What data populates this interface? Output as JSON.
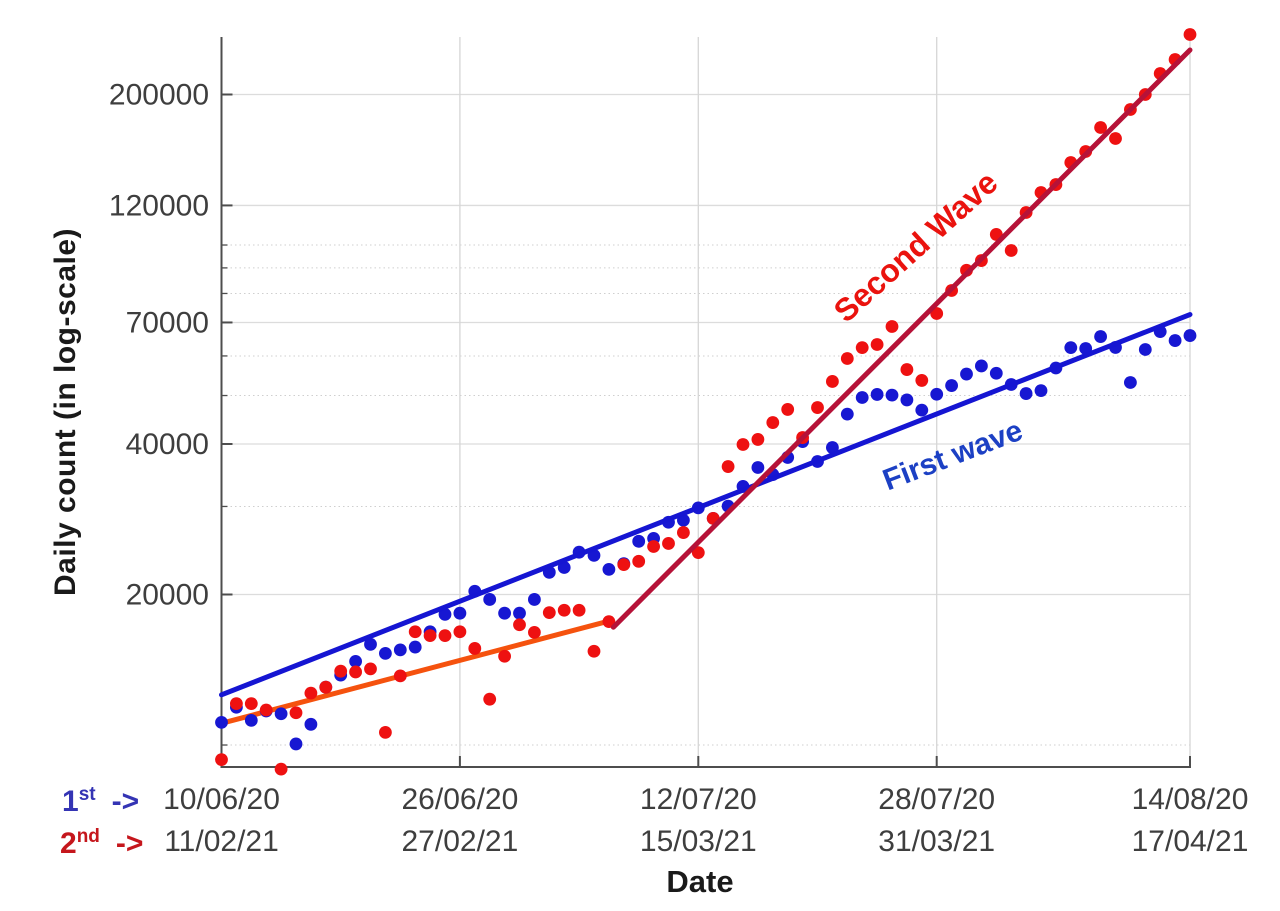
{
  "figure": {
    "y_axis_label": "Daily count (in log-scale)",
    "x_axis_label": "Date",
    "legend": {
      "row1": {
        "num": "1",
        "sup": "st",
        "arrow": "->",
        "color": "#3434b4"
      },
      "row2": {
        "num": "2",
        "sup": "nd",
        "arrow": "->",
        "color": "#c5161c"
      }
    },
    "annotations": {
      "second_wave": {
        "text": "Second Wave",
        "color": "#ea130e"
      },
      "first_wave": {
        "text": "First wave",
        "color": "#1c40c4"
      }
    }
  },
  "chart_data": {
    "type": "scatter",
    "title": "",
    "xlabel": "Date",
    "ylabel": "Daily count (in log-scale)",
    "y_scale": "log",
    "ylim": [
      9000,
      261000
    ],
    "x_unit": "days since wave start (daily points, day 0 - day 65)",
    "grid": "major solid + minor dotted horizontal, vertical at major date ticks",
    "y_major_ticks": [
      20000,
      40000,
      70000,
      120000,
      200000
    ],
    "y_minor_ticks": [
      10000,
      30000,
      50000,
      60000,
      80000,
      90000,
      100000
    ],
    "x_ticks": {
      "days": [
        0,
        16,
        32,
        48,
        65
      ],
      "first_wave_labels": [
        "10/06/20",
        "26/06/20",
        "12/07/20",
        "28/07/20",
        "14/08/20"
      ],
      "second_wave_labels": [
        "11/02/21",
        "27/02/21",
        "15/03/21",
        "31/03/21",
        "17/04/21"
      ]
    },
    "series": [
      {
        "name": "First wave daily counts",
        "color": "#1717d2",
        "start_date": "10/06/20",
        "end_date": "14/08/20",
        "values": [
          11100,
          11900,
          11200,
          11700,
          11550,
          10050,
          11000,
          13050,
          13800,
          14700,
          15900,
          15250,
          15500,
          15700,
          16850,
          18250,
          18350,
          20300,
          19550,
          18350,
          18350,
          19550,
          22150,
          22650,
          24300,
          23950,
          22450,
          23050,
          25550,
          25900,
          27900,
          28150,
          29800,
          28400,
          30050,
          32900,
          35900,
          34750,
          37600,
          40450,
          36900,
          39350,
          45900,
          49550,
          50250,
          50100,
          49000,
          46750,
          50300,
          52350,
          55200,
          57300,
          55400,
          52600,
          50450,
          51150,
          56750,
          62350,
          62100,
          65600,
          62400,
          53100,
          61800,
          67100,
          64400,
          65900
        ]
      },
      {
        "name": "Second wave daily counts",
        "color": "#ee1111",
        "start_date": "11/02/21",
        "end_date": "17/04/21",
        "values": [
          9350,
          12100,
          12100,
          11750,
          8950,
          11600,
          12700,
          13050,
          14050,
          14000,
          14200,
          10600,
          13750,
          16850,
          16550,
          16550,
          16850,
          15600,
          12350,
          15050,
          17400,
          16800,
          18400,
          18600,
          18600,
          15400,
          17650,
          22950,
          23300,
          24950,
          25300,
          26600,
          24250,
          28400,
          36050,
          39900,
          40850,
          44150,
          46900,
          41200,
          47300,
          53350,
          59300,
          62350,
          63250,
          68700,
          56350,
          53600,
          72950,
          81100,
          89000,
          93100,
          105000,
          97500,
          116150,
          127350,
          132100,
          146200,
          153800,
          171800,
          163300,
          186650,
          200000,
          220300,
          235000,
          263650
        ]
      }
    ],
    "trend_lines": [
      {
        "name": "First wave fit",
        "color": "#1515d2",
        "from": {
          "day": 0,
          "value": 12600
        },
        "to": {
          "day": 65,
          "value": 72600
        }
      },
      {
        "name": "Second wave early fit",
        "color": "#f5520e",
        "from": {
          "day": 0,
          "value": 11050
        },
        "to": {
          "day": 26,
          "value": 17700
        }
      },
      {
        "name": "Second wave exponential fit",
        "color": "#b61238",
        "from": {
          "day": 26.3,
          "value": 17200
        },
        "to": {
          "day": 65,
          "value": 245500
        }
      }
    ],
    "legend_note": "1st -> first-wave dates (blue), 2nd -> second-wave dates (red)"
  }
}
